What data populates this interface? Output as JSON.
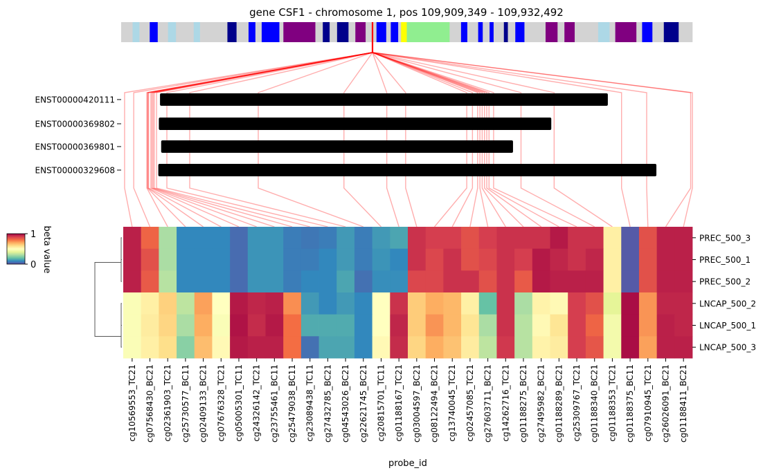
{
  "chart_data": {
    "type": "heatmap",
    "title": "gene CSF1 - chromosome 1, pos 109,909,349 - 109,932,492",
    "xlabel": "probe_id",
    "colorbar": {
      "label": "beta value",
      "ticks": [
        "1",
        "0"
      ],
      "colors": [
        "#9e0142",
        "#d53e4f",
        "#f46d43",
        "#fdae61",
        "#fee08b",
        "#ffffbf",
        "#e6f598",
        "#abdda4",
        "#66c2a5",
        "#3288bd",
        "#5e4fa2"
      ]
    },
    "gene_track": {
      "blocks": [
        {
          "s": 0.0,
          "e": 0.02,
          "c": "#d3d3d3"
        },
        {
          "s": 0.02,
          "e": 0.032,
          "c": "#add8e6"
        },
        {
          "s": 0.032,
          "e": 0.05,
          "c": "#d3d3d3"
        },
        {
          "s": 0.05,
          "e": 0.064,
          "c": "#0000ff"
        },
        {
          "s": 0.064,
          "e": 0.082,
          "c": "#d3d3d3"
        },
        {
          "s": 0.082,
          "e": 0.096,
          "c": "#add8e6"
        },
        {
          "s": 0.096,
          "e": 0.127,
          "c": "#d3d3d3"
        },
        {
          "s": 0.127,
          "e": 0.138,
          "c": "#add8e6"
        },
        {
          "s": 0.138,
          "e": 0.186,
          "c": "#d3d3d3"
        },
        {
          "s": 0.186,
          "e": 0.202,
          "c": "#00008b"
        },
        {
          "s": 0.202,
          "e": 0.223,
          "c": "#d3d3d3"
        },
        {
          "s": 0.223,
          "e": 0.235,
          "c": "#0000ff"
        },
        {
          "s": 0.235,
          "e": 0.246,
          "c": "#d3d3d3"
        },
        {
          "s": 0.246,
          "e": 0.277,
          "c": "#0000ff"
        },
        {
          "s": 0.277,
          "e": 0.284,
          "c": "#d3d3d3"
        },
        {
          "s": 0.284,
          "e": 0.34,
          "c": "#800080"
        },
        {
          "s": 0.34,
          "e": 0.353,
          "c": "#d3d3d3"
        },
        {
          "s": 0.353,
          "e": 0.365,
          "c": "#00008b"
        },
        {
          "s": 0.365,
          "e": 0.378,
          "c": "#d3d3d3"
        },
        {
          "s": 0.378,
          "e": 0.398,
          "c": "#00008b"
        },
        {
          "s": 0.398,
          "e": 0.41,
          "c": "#d3d3d3"
        },
        {
          "s": 0.41,
          "e": 0.428,
          "c": "#800080"
        },
        {
          "s": 0.428,
          "e": 0.447,
          "c": "#d3d3d3"
        },
        {
          "s": 0.447,
          "e": 0.464,
          "c": "#0000ff"
        },
        {
          "s": 0.464,
          "e": 0.472,
          "c": "#d3d3d3"
        },
        {
          "s": 0.472,
          "e": 0.485,
          "c": "#0000ff"
        },
        {
          "s": 0.485,
          "e": 0.49,
          "c": "#d3d3d3"
        },
        {
          "s": 0.49,
          "e": 0.5,
          "c": "#ffff00"
        },
        {
          "s": 0.5,
          "e": 0.575,
          "c": "#90ee90"
        },
        {
          "s": 0.575,
          "e": 0.595,
          "c": "#d3d3d3"
        },
        {
          "s": 0.595,
          "e": 0.606,
          "c": "#0000ff"
        },
        {
          "s": 0.606,
          "e": 0.625,
          "c": "#d3d3d3"
        },
        {
          "s": 0.625,
          "e": 0.633,
          "c": "#0000ff"
        },
        {
          "s": 0.633,
          "e": 0.645,
          "c": "#d3d3d3"
        },
        {
          "s": 0.645,
          "e": 0.652,
          "c": "#0000ff"
        },
        {
          "s": 0.652,
          "e": 0.67,
          "c": "#d3d3d3"
        },
        {
          "s": 0.67,
          "e": 0.677,
          "c": "#00008b"
        },
        {
          "s": 0.677,
          "e": 0.69,
          "c": "#d3d3d3"
        },
        {
          "s": 0.69,
          "e": 0.706,
          "c": "#0000ff"
        },
        {
          "s": 0.706,
          "e": 0.743,
          "c": "#d3d3d3"
        },
        {
          "s": 0.743,
          "e": 0.764,
          "c": "#800080"
        },
        {
          "s": 0.764,
          "e": 0.776,
          "c": "#d3d3d3"
        },
        {
          "s": 0.776,
          "e": 0.794,
          "c": "#800080"
        },
        {
          "s": 0.794,
          "e": 0.835,
          "c": "#d3d3d3"
        },
        {
          "s": 0.835,
          "e": 0.855,
          "c": "#add8e6"
        },
        {
          "s": 0.855,
          "e": 0.865,
          "c": "#d3d3d3"
        },
        {
          "s": 0.865,
          "e": 0.902,
          "c": "#800080"
        },
        {
          "s": 0.902,
          "e": 0.912,
          "c": "#d3d3d3"
        },
        {
          "s": 0.912,
          "e": 0.93,
          "c": "#0000ff"
        },
        {
          "s": 0.93,
          "e": 0.95,
          "c": "#d3d3d3"
        },
        {
          "s": 0.95,
          "e": 0.976,
          "c": "#00008b"
        },
        {
          "s": 0.976,
          "e": 1.0,
          "c": "#d3d3d3"
        }
      ],
      "marker": 0.44
    },
    "transcripts": [
      {
        "name": "ENST00000420111",
        "start": 0.068,
        "end": 0.852
      },
      {
        "name": "ENST00000369802",
        "start": 0.066,
        "end": 0.753
      },
      {
        "name": "ENST00000369801",
        "start": 0.07,
        "end": 0.686
      },
      {
        "name": "ENST00000329608",
        "start": 0.065,
        "end": 0.937
      }
    ],
    "rows": [
      "PREC_500_3",
      "PREC_500_1",
      "PREC_500_2",
      "LNCAP_500_2",
      "LNCAP_500_1",
      "LNCAP_500_3"
    ],
    "probes": [
      {
        "id": "cg10569553_TC21",
        "pos": 0.006
      },
      {
        "id": "cg07568430_BC21",
        "pos": 0.022
      },
      {
        "id": "cg02361903_TC21",
        "pos": 0.045
      },
      {
        "id": "cg25730577_BC11",
        "pos": 0.046
      },
      {
        "id": "cg02409133_BC21",
        "pos": 0.047
      },
      {
        "id": "cg07676328_TC21",
        "pos": 0.048
      },
      {
        "id": "cg05005301_TC11",
        "pos": 0.052
      },
      {
        "id": "cg24326142_TC21",
        "pos": 0.054
      },
      {
        "id": "cg23755461_BC11",
        "pos": 0.056
      },
      {
        "id": "cg25479038_BC11",
        "pos": 0.058
      },
      {
        "id": "cg23089438_TC11",
        "pos": 0.062
      },
      {
        "id": "cg27432785_BC21",
        "pos": 0.08
      },
      {
        "id": "cg04543026_BC21",
        "pos": 0.12
      },
      {
        "id": "cg22621745_BC21",
        "pos": 0.24
      },
      {
        "id": "cg20815701_TC11",
        "pos": 0.39
      },
      {
        "id": "cg01188167_TC21",
        "pos": 0.465
      },
      {
        "id": "cg03004597_BC21",
        "pos": 0.498
      },
      {
        "id": "cg08122494_BC21",
        "pos": 0.605
      },
      {
        "id": "cg13740045_TC21",
        "pos": 0.615
      },
      {
        "id": "cg02457085_TC21",
        "pos": 0.624
      },
      {
        "id": "cg27603711_BC21",
        "pos": 0.628
      },
      {
        "id": "cg14262716_TC21",
        "pos": 0.632
      },
      {
        "id": "cg01188275_BC21",
        "pos": 0.636
      },
      {
        "id": "cg27495982_BC21",
        "pos": 0.64
      },
      {
        "id": "cg01188289_BC21",
        "pos": 0.644
      },
      {
        "id": "cg25309767_TC21",
        "pos": 0.652
      },
      {
        "id": "cg01188340_BC21",
        "pos": 0.7
      },
      {
        "id": "cg01188353_TC21",
        "pos": 0.758
      },
      {
        "id": "cg01188375_BC11",
        "pos": 0.876
      },
      {
        "id": "cg07910945_TC21",
        "pos": 0.92
      },
      {
        "id": "cg26026091_BC21",
        "pos": 0.997
      },
      {
        "id": "cg01188411_BC21",
        "pos": 1.0
      }
    ],
    "values": [
      [
        0.95,
        0.82,
        0.3,
        0.1,
        0.1,
        0.1,
        0.05,
        0.12,
        0.12,
        0.08,
        0.07,
        0.08,
        0.13,
        0.08,
        0.13,
        0.15,
        0.92,
        0.9,
        0.9,
        0.86,
        0.9,
        0.92,
        0.92,
        0.92,
        0.96,
        0.92,
        0.92,
        0.55,
        0.02,
        0.86,
        0.95,
        0.95
      ],
      [
        0.95,
        0.86,
        0.3,
        0.1,
        0.1,
        0.1,
        0.05,
        0.12,
        0.12,
        0.08,
        0.08,
        0.1,
        0.13,
        0.08,
        0.12,
        0.1,
        0.92,
        0.88,
        0.92,
        0.86,
        0.88,
        0.92,
        0.9,
        0.96,
        0.94,
        0.92,
        0.94,
        0.55,
        0.02,
        0.86,
        0.95,
        0.95
      ],
      [
        0.95,
        0.84,
        0.32,
        0.1,
        0.1,
        0.1,
        0.05,
        0.12,
        0.12,
        0.08,
        0.1,
        0.1,
        0.15,
        0.06,
        0.11,
        0.11,
        0.88,
        0.88,
        0.92,
        0.92,
        0.86,
        0.92,
        0.84,
        0.96,
        0.95,
        0.95,
        0.95,
        0.55,
        0.02,
        0.86,
        0.95,
        0.95
      ],
      [
        0.48,
        0.55,
        0.63,
        0.33,
        0.72,
        0.5,
        0.96,
        0.94,
        0.95,
        0.75,
        0.13,
        0.1,
        0.13,
        0.1,
        0.5,
        0.92,
        0.64,
        0.7,
        0.68,
        0.55,
        0.2,
        0.92,
        0.3,
        0.54,
        0.52,
        0.9,
        0.86,
        0.4,
        0.98,
        0.74,
        0.94,
        0.94
      ],
      [
        0.48,
        0.56,
        0.62,
        0.3,
        0.7,
        0.48,
        0.97,
        0.93,
        0.96,
        0.8,
        0.16,
        0.16,
        0.16,
        0.1,
        0.5,
        0.94,
        0.64,
        0.74,
        0.68,
        0.58,
        0.3,
        0.92,
        0.32,
        0.52,
        0.58,
        0.9,
        0.82,
        0.45,
        0.98,
        0.74,
        0.95,
        0.94
      ],
      [
        0.48,
        0.55,
        0.6,
        0.25,
        0.67,
        0.52,
        0.96,
        0.95,
        0.95,
        0.8,
        0.06,
        0.15,
        0.15,
        0.1,
        0.52,
        0.93,
        0.62,
        0.7,
        0.66,
        0.56,
        0.33,
        0.91,
        0.32,
        0.54,
        0.56,
        0.9,
        0.85,
        0.45,
        0.98,
        0.72,
        0.95,
        0.95
      ]
    ]
  }
}
